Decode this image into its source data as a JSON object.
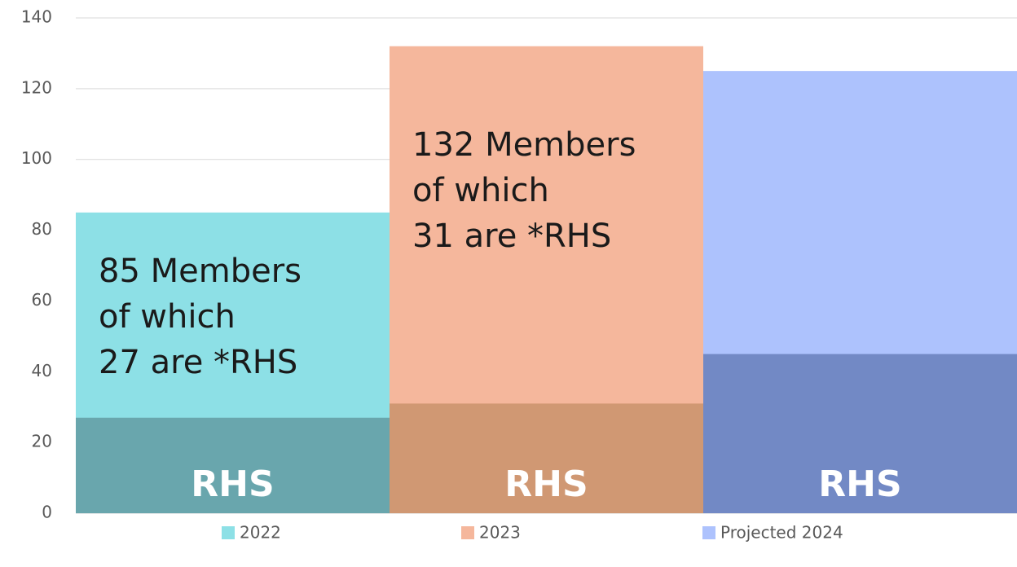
{
  "chart_data": {
    "type": "overlap-bar",
    "categories": [
      "2022",
      "2023",
      "Projected 2024"
    ],
    "series": [
      {
        "name": "Members",
        "colors": [
          "#8de0e6",
          "#f5b79c",
          "#adc2fd"
        ],
        "values": [
          85,
          132,
          125
        ]
      },
      {
        "name": "RHS",
        "colors": [
          "#69a6ad",
          "#d09873",
          "#7289c5"
        ],
        "values": [
          27,
          31,
          45
        ]
      }
    ],
    "annotations": [
      {
        "lines": [
          "85 Members",
          "of which",
          "27 are *RHS"
        ]
      },
      {
        "lines": [
          "132 Members",
          "of which",
          "31 are *RHS"
        ]
      }
    ],
    "ylim": [
      0,
      140
    ],
    "yticks": [
      0,
      20,
      40,
      60,
      80,
      100,
      120,
      140
    ],
    "grid": true
  }
}
